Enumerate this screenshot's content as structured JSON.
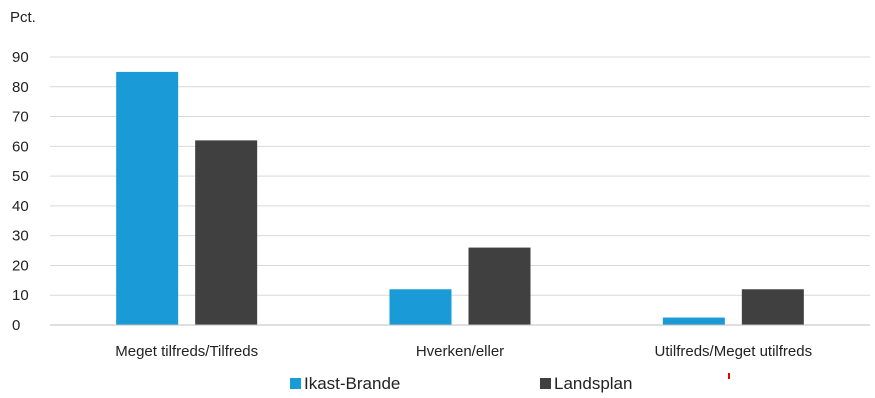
{
  "chart_data": {
    "type": "bar",
    "ylabel": "Pct.",
    "ylim": [
      0,
      90
    ],
    "yticks": [
      0,
      10,
      20,
      30,
      40,
      50,
      60,
      70,
      80,
      90
    ],
    "grid": true,
    "legend_position": "bottom",
    "categories": [
      "Meget tilfreds/Tilfreds",
      "Hverken/eller",
      "Utilfreds/Meget utilfreds"
    ],
    "series": [
      {
        "name": "Ikast-Brande",
        "color": "#1a9ad7",
        "values": [
          85,
          12,
          2.5
        ]
      },
      {
        "name": "Landsplan",
        "color": "#404040",
        "values": [
          62,
          26,
          12
        ]
      }
    ]
  }
}
